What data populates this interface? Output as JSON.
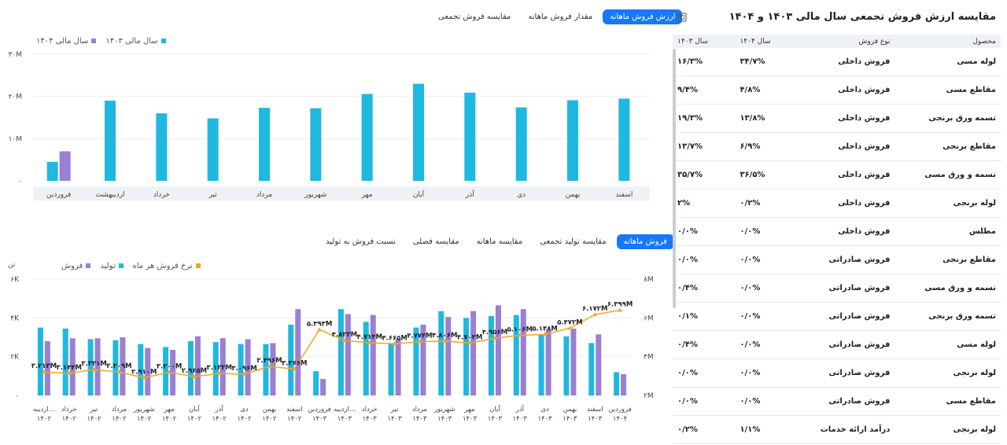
{
  "top": {
    "tabs": [
      {
        "label": "ارزش فروش ماهانه",
        "active": true
      },
      {
        "label": "مقدار فروش ماهانه",
        "active": false
      },
      {
        "label": "مقایسه فروش تجمعی",
        "active": false
      }
    ],
    "legend": [
      {
        "label": "سال مالی ۱۴۰۴",
        "color": "#9b7fd4"
      },
      {
        "label": "سال مالی ۱۴۰۳",
        "color": "#1fb8e0"
      }
    ]
  },
  "bottom": {
    "tabs": [
      {
        "label": "فروش ماهانه",
        "active": true
      },
      {
        "label": "مقایسه تولید تجمعی",
        "active": false
      },
      {
        "label": "مقایسه ماهانه",
        "active": false
      },
      {
        "label": "مقایسه فصلی",
        "active": false
      },
      {
        "label": "نسبت فروش به تولید",
        "active": false
      }
    ],
    "legend": [
      {
        "label": "فروش",
        "color": "#9b7fd4"
      },
      {
        "label": "تولید",
        "color": "#1fb8e0"
      },
      {
        "label": "نرخ فروش هر ماه",
        "color": "#f5a623"
      }
    ],
    "unit_label": "تن"
  },
  "chart_data": [
    {
      "type": "bar",
      "ylim": [
        0,
        30
      ],
      "yticks": [
        "۰",
        "۱۰M",
        "۲۰M",
        "۳۰M"
      ],
      "categories": [
        "فروردین",
        "اردیبهشت",
        "خرداد",
        "تیر",
        "مرداد",
        "شهریور",
        "مهر",
        "آبان",
        "آذر",
        "دی",
        "بهمن",
        "اسفند"
      ],
      "series": [
        {
          "name": "سال مالی ۱۴۰۳",
          "values": [
            4.5,
            19,
            16,
            14.8,
            17.3,
            17.2,
            20.6,
            23,
            20.9,
            17.4,
            19.1,
            19.5
          ]
        },
        {
          "name": "سال مالی ۱۴۰۴",
          "values": [
            7,
            null,
            null,
            null,
            null,
            null,
            null,
            null,
            null,
            null,
            null,
            null
          ]
        }
      ]
    },
    {
      "type": "bar",
      "ylim": [
        0,
        6000
      ],
      "yticks": [
        "۰",
        "۲K",
        "۴K",
        "۶K"
      ],
      "y2ticks": [
        "۲M",
        "۴M",
        "۶M",
        "۸M"
      ],
      "y2lim": [
        2,
        8
      ],
      "categories": [
        [
          "اردیبه...",
          "۱۴۰۲"
        ],
        [
          "خرداد",
          "۱۴۰۲"
        ],
        [
          "تیر",
          "۱۴۰۲"
        ],
        [
          "مرداد",
          "۱۴۰۲"
        ],
        [
          "شهریور",
          "۱۴۰۲"
        ],
        [
          "مهر",
          "۱۴۰۲"
        ],
        [
          "آبان",
          "۱۴۰۲"
        ],
        [
          "آذر",
          "۱۴۰۲"
        ],
        [
          "دی",
          "۱۴۰۲"
        ],
        [
          "بهمن",
          "۱۴۰۲"
        ],
        [
          "اسفند",
          "۱۴۰۲"
        ],
        [
          "فروردین",
          "۱۴۰۳"
        ],
        [
          "اردیبه...",
          "۱۴۰۳"
        ],
        [
          "خرداد",
          "۱۴۰۳"
        ],
        [
          "تیر",
          "۱۴۰۳"
        ],
        [
          "مرداد",
          "۱۴۰۳"
        ],
        [
          "شهریور",
          "۱۴۰۳"
        ],
        [
          "مهر",
          "۱۴۰۳"
        ],
        [
          "آبان",
          "۱۴۰۳"
        ],
        [
          "آذر",
          "۱۴۰۳"
        ],
        [
          "دی",
          "۱۴۰۳"
        ],
        [
          "بهمن",
          "۱۴۰۳"
        ],
        [
          "اسفند",
          "۱۴۰۳"
        ],
        [
          "فروردین",
          "۱۴۰۴"
        ]
      ],
      "series": [
        {
          "name": "تولید",
          "values": [
            3500,
            3450,
            2900,
            2850,
            2650,
            2500,
            2800,
            2750,
            2650,
            2650,
            3650,
            1250,
            4450,
            3800,
            2700,
            3500,
            4350,
            4000,
            4100,
            4150,
            3150,
            3050,
            2700,
            1200
          ]
        },
        {
          "name": "فروش",
          "values": [
            2800,
            2950,
            2950,
            3000,
            2450,
            2350,
            3050,
            2950,
            2900,
            2700,
            4450,
            850,
            4200,
            4150,
            2900,
            3650,
            4050,
            4350,
            4650,
            4450,
            3400,
            3450,
            3150,
            1100
          ]
        },
        {
          "name": "نرخ فروش هر ماه",
          "values": [
            3.213,
            3.144,
            3.331,
            3.209,
            2.91,
            3.2,
            2.965,
            3.133,
            3.096,
            3.496,
            3.366,
            5.393,
            4.833,
            4.714,
            4.665,
            4.774,
            4.806,
            4.702,
            4.956,
            5.106,
            5.148,
            5.472,
            6.172,
            6.399
          ]
        }
      ],
      "point_labels": [
        "۳.۲۱۳M",
        "۳.۱۴۴M",
        "۳.۳۳۱M",
        "۳.۲۰۹M",
        "۲.۹۱۰M",
        "۳.۲۰۰M",
        "۲.۹۶۵M",
        "۳.۱۳۳M",
        "۳.۰۹۶M",
        "۳.۴۹۶M",
        "۳.۳۶۶M",
        "۵.۳۹۳M",
        "۴.۸۳۳M",
        "۴.۷۱۴M",
        "۴.۶۶۵M",
        "۴.۷۷۴M",
        "۴.۸۰۶M",
        "۴.۷۰۲M",
        "۴.۹۵۶M",
        "۵.۱۰۶M",
        "۵.۱۴۸M",
        "۵.۴۷۲M",
        "۶.۱۷۲M",
        "۶.۳۹۹M"
      ]
    }
  ],
  "table": {
    "title": "مقایسه ارزش فروش تجمعی سال مالی ۱۴۰۳ و ۱۴۰۴",
    "icon": "download-icon",
    "headers": [
      "محصول",
      "نوع فروش",
      "سال ۱۴۰۴",
      "سال ۱۴۰۳"
    ],
    "rows": [
      [
        "لوله مسی",
        "فروش داخلی",
        "۳۴/۷%",
        "۱۶/۳%"
      ],
      [
        "مقاطع مسی",
        "فروش داخلی",
        "۴/۸%",
        "۹/۴%"
      ],
      [
        "تسمه ورق برنجی",
        "فروش داخلی",
        "۱۳/۸%",
        "۱۹/۳%"
      ],
      [
        "مقاطع برنجی",
        "فروش داخلی",
        "۶/۹%",
        "۱۳/۷%"
      ],
      [
        "تسمه و ورق مسی",
        "فروش داخلی",
        "۳۶/۵%",
        "۳۵/۷%"
      ],
      [
        "لوله برنجی",
        "فروش داخلی",
        "۰/۲%",
        "۲%"
      ],
      [
        "مطلس",
        "فروش داخلی",
        "۰/۰%",
        "۰/۰%"
      ],
      [
        "مقاطع برنجی",
        "فروش صادراتی",
        "۰/۰%",
        "۰/۰%"
      ],
      [
        "تسمه و ورق مسی",
        "فروش صادراتی",
        "۰/۰%",
        "۰/۴%"
      ],
      [
        "تسمه ورق برنجی",
        "فروش صادراتی",
        "۰/۰%",
        "۰/۱%"
      ],
      [
        "لوله مسی",
        "فروش صادراتی",
        "۰/۰%",
        "۰/۴%"
      ],
      [
        "لوله برنجی",
        "فروش صادراتی",
        "۰/۰%",
        "۰/۰%"
      ],
      [
        "مقاطع مسی",
        "فروش صادراتی",
        "۰/۰%",
        "۰/۰%"
      ],
      [
        "لوله برنجی",
        "درآمد ارائه خدمات",
        "۱/۱%",
        "۰/۲%"
      ]
    ]
  }
}
